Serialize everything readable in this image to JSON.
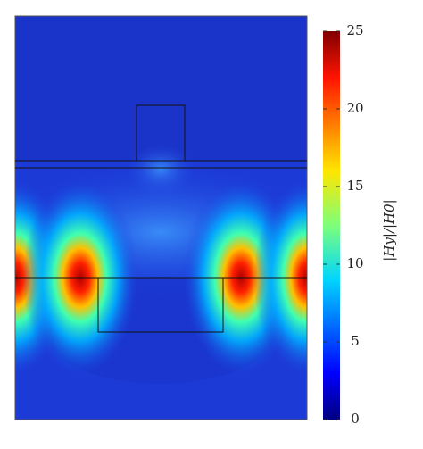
{
  "chart_data": {
    "type": "heatmap",
    "colorbar_label": "|Hy|/|H0|",
    "zlim": [
      0,
      25
    ],
    "zticks": [
      0,
      5,
      10,
      15,
      20,
      25
    ],
    "colormap": "jet"
  }
}
